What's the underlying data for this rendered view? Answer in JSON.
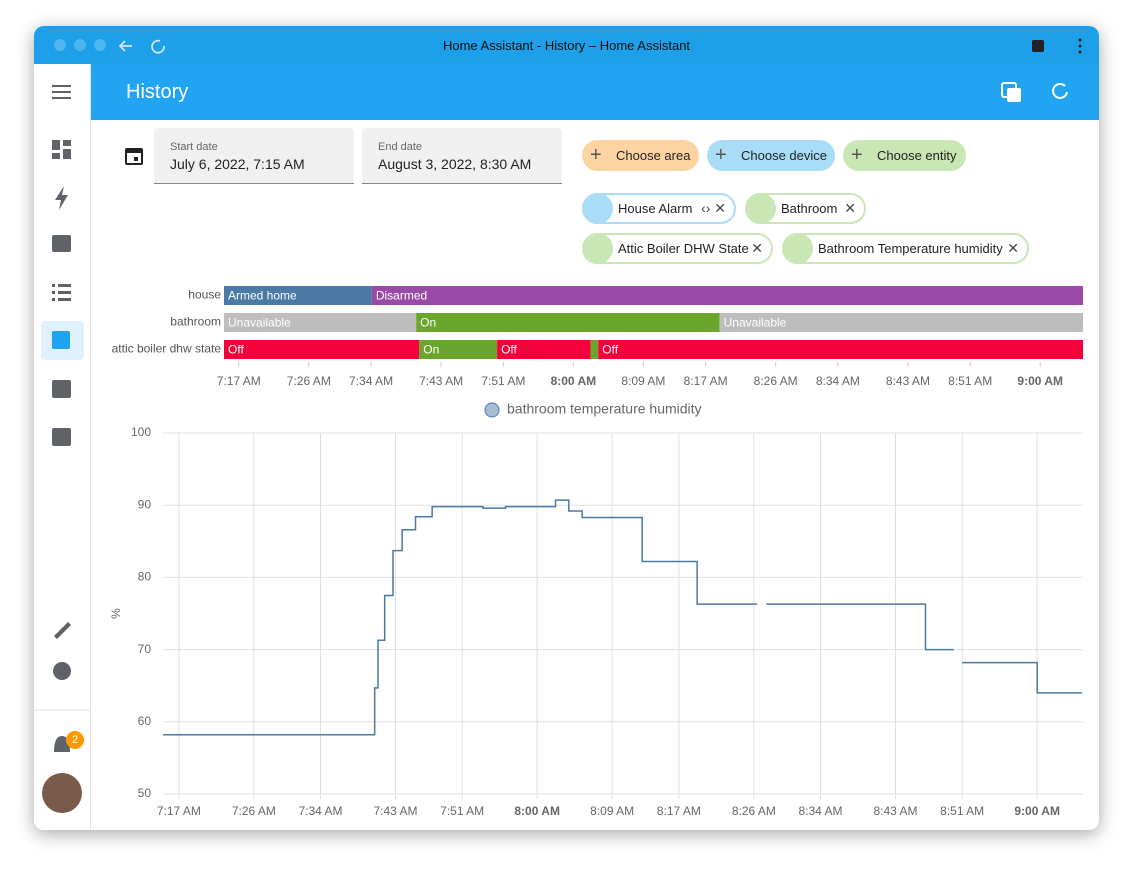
{
  "window": {
    "title": "Home Assistant - History – Home Assistant"
  },
  "header": {
    "title": "History"
  },
  "dates": {
    "start_label": "Start date",
    "start_value": "July 6, 2022, 7:15 AM",
    "end_label": "End date",
    "end_value": "August 3, 2022, 8:30 AM"
  },
  "pickers": [
    "Choose area",
    "Choose device",
    "Choose entity"
  ],
  "targets": [
    "House Alarm",
    "Bathroom",
    "Attic Boiler DHW State",
    "Bathroom Temperature humidity"
  ],
  "notifications": {
    "badge": "2"
  },
  "chart_data": [
    {
      "type": "timeline",
      "xlim": [
        435.1,
        545.5
      ],
      "xticks": [
        {
          "value": 437,
          "label": "7:17 AM"
        },
        {
          "value": 446,
          "label": "7:26 AM"
        },
        {
          "value": 454,
          "label": "7:34 AM"
        },
        {
          "value": 463,
          "label": "7:43 AM"
        },
        {
          "value": 471,
          "label": "7:51 AM"
        },
        {
          "value": 480,
          "label": "8:00 AM",
          "bold": true
        },
        {
          "value": 489,
          "label": "8:09 AM"
        },
        {
          "value": 497,
          "label": "8:17 AM"
        },
        {
          "value": 506,
          "label": "8:26 AM"
        },
        {
          "value": 514,
          "label": "8:34 AM"
        },
        {
          "value": 523,
          "label": "8:43 AM"
        },
        {
          "value": 531,
          "label": "8:51 AM"
        },
        {
          "value": 540,
          "label": "9:00 AM",
          "bold": true
        }
      ],
      "rows": [
        {
          "name": "house",
          "segments": [
            {
              "state": "Armed home",
              "color": "#4a79a5",
              "start": 435.1,
              "end": 454.1
            },
            {
              "state": "Disarmed",
              "color": "#994aa6",
              "start": 454.1,
              "end": 545.5
            }
          ]
        },
        {
          "name": "bathroom",
          "segments": [
            {
              "state": "Unavailable",
              "color": "#bdbdbd",
              "start": 435.1,
              "end": 459.8
            },
            {
              "state": "On",
              "color": "#6aa62c",
              "start": 459.8,
              "end": 498.8
            },
            {
              "state": "Unavailable",
              "color": "#bdbdbd",
              "start": 498.8,
              "end": 545.5
            }
          ]
        },
        {
          "name": "attic boiler dhw state",
          "segments": [
            {
              "state": "Off",
              "color": "#f5003a",
              "start": 435.1,
              "end": 460.2
            },
            {
              "state": "On",
              "color": "#6aa62c",
              "start": 460.2,
              "end": 470.2
            },
            {
              "state": "Off",
              "color": "#f5003a",
              "start": 470.2,
              "end": 482.2
            },
            {
              "state": null,
              "color": "#6aa62c",
              "start": 482.2,
              "end": 483.2
            },
            {
              "state": "Off",
              "color": "#f5003a",
              "start": 483.2,
              "end": 545.5
            }
          ]
        }
      ]
    },
    {
      "type": "line",
      "step": true,
      "grid": true,
      "y_label": "%",
      "ylim": [
        50,
        100
      ],
      "yticks": [
        50,
        60,
        70,
        80,
        90,
        100
      ],
      "xlim": [
        435.1,
        545.5
      ],
      "xticks": [
        {
          "value": 437,
          "label": "7:17 AM"
        },
        {
          "value": 446,
          "label": "7:26 AM"
        },
        {
          "value": 454,
          "label": "7:34 AM"
        },
        {
          "value": 463,
          "label": "7:43 AM"
        },
        {
          "value": 471,
          "label": "7:51 AM"
        },
        {
          "value": 480,
          "label": "8:00 AM",
          "bold": true
        },
        {
          "value": 489,
          "label": "8:09 AM"
        },
        {
          "value": 497,
          "label": "8:17 AM"
        },
        {
          "value": 506,
          "label": "8:26 AM"
        },
        {
          "value": 514,
          "label": "8:34 AM"
        },
        {
          "value": 523,
          "label": "8:43 AM"
        },
        {
          "value": 531,
          "label": "8:51 AM"
        },
        {
          "value": 540,
          "label": "9:00 AM",
          "bold": true
        }
      ],
      "series": [
        {
          "name": "bathroom temperature humidity",
          "color": "#4a79a5",
          "x": [
            435.1,
            460.5,
            460.9,
            461.7,
            462.7,
            463.8,
            465.4,
            467.4,
            473.5,
            476.2,
            482.2,
            483.8,
            485.4,
            492.6,
            499.2,
            506.4,
            null,
            507.5,
            526.6,
            530.0,
            null,
            531.0,
            540.0,
            545.4
          ],
          "values": [
            58.2,
            64.7,
            71.3,
            77.5,
            83.7,
            86.6,
            88.4,
            89.8,
            89.6,
            89.8,
            90.7,
            89.2,
            88.3,
            82.2,
            76.3,
            76.3,
            null,
            76.3,
            70.0,
            70.0,
            null,
            68.2,
            64.0,
            64.0
          ]
        }
      ]
    }
  ]
}
